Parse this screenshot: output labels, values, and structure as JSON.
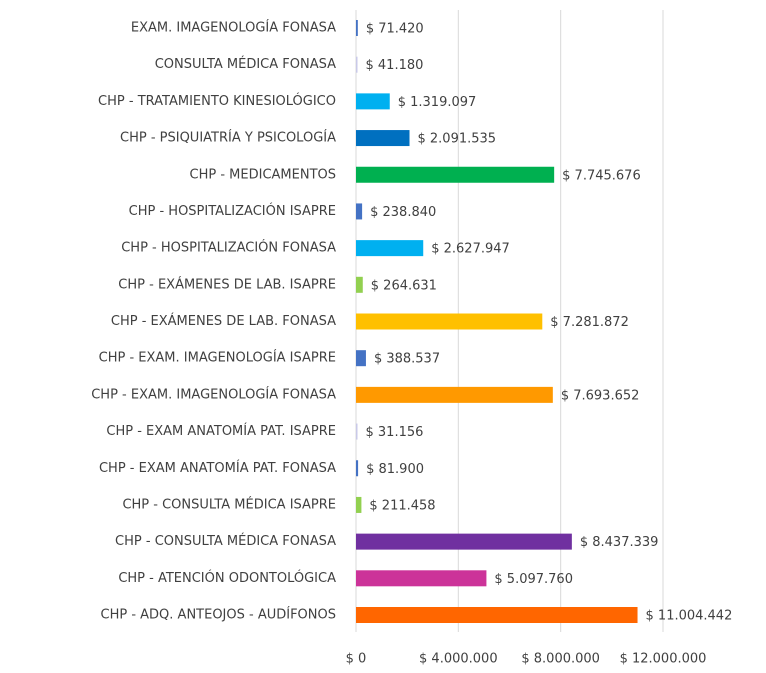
{
  "chart_data": {
    "type": "barh",
    "categories": [
      "EXAM. IMAGENOLOGÍA FONASA",
      "CONSULTA MÉDICA FONASA",
      "CHP - TRATAMIENTO KINESIOLÓGICO",
      "CHP - PSIQUIATRÍA Y PSICOLOGÍA",
      "CHP - MEDICAMENTOS",
      "CHP - HOSPITALIZACIÓN ISAPRE",
      "CHP - HOSPITALIZACIÓN FONASA",
      "CHP - EXÁMENES DE LAB. ISAPRE",
      "CHP - EXÁMENES DE LAB. FONASA",
      "CHP - EXAM. IMAGENOLOGÍA ISAPRE",
      "CHP - EXAM. IMAGENOLOGÍA FONASA",
      "CHP - EXAM ANATOMÍA PAT. ISAPRE",
      "CHP - EXAM ANATOMÍA PAT. FONASA",
      "CHP - CONSULTA MÉDICA ISAPRE",
      "CHP - CONSULTA MÉDICA FONASA",
      "CHP - ATENCIÓN ODONTOLÓGICA",
      "CHP - ADQ. ANTEOJOS - AUDÍFONOS"
    ],
    "values": [
      71420,
      41180,
      1319097,
      2091535,
      7745676,
      238840,
      2627947,
      264631,
      7281872,
      388537,
      7693652,
      31156,
      81900,
      211458,
      8437339,
      5097760,
      11004442
    ],
    "value_labels": [
      "$ 71.420",
      "$ 41.180",
      "$ 1.319.097",
      "$ 2.091.535",
      "$ 7.745.676",
      "$ 238.840",
      "$ 2.627.947",
      "$ 264.631",
      "$ 7.281.872",
      "$ 388.537",
      "$ 7.693.652",
      "$ 31.156",
      "$ 81.900",
      "$ 211.458",
      "$ 8.437.339",
      "$ 5.097.760",
      "$ 11.004.442"
    ],
    "colors": [
      "#4472c4",
      "#c9c9e8",
      "#00b0f0",
      "#0070c0",
      "#00b050",
      "#4472c4",
      "#00b0f0",
      "#92d050",
      "#ffc000",
      "#4472c4",
      "#ff9900",
      "#c9c9e8",
      "#4472c4",
      "#92d050",
      "#7030a0",
      "#cc3399",
      "#ff6600"
    ],
    "xlim": [
      0,
      12000000
    ],
    "xticks": [
      {
        "value": 0,
        "label": "$ 0"
      },
      {
        "value": 4000000,
        "label": "$ 4.000.000"
      },
      {
        "value": 8000000,
        "label": "$ 8.000.000"
      },
      {
        "value": 12000000,
        "label": "$ 12.000.000"
      }
    ],
    "grid": true
  }
}
